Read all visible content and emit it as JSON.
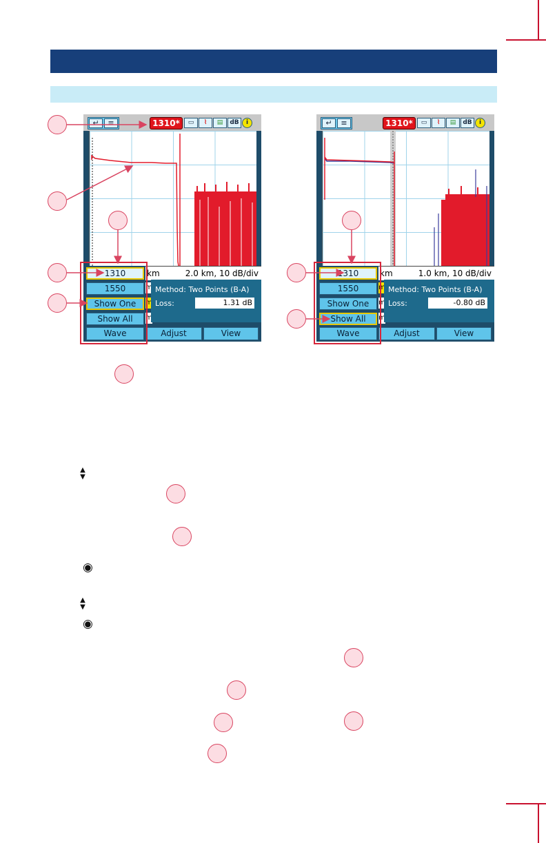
{
  "colors": {
    "header_dark": "#173f7a",
    "header_light": "#c9ecf7",
    "trace_red": "#e21b2b",
    "trace_blue": "#3b3d9c",
    "callout": "#d94460"
  },
  "left_device": {
    "wavelength": "1310*",
    "scale": "2.0 km, 10 dB/div",
    "km_label": "km",
    "method": "Method: Two Points (B-A)",
    "loss_label": "Loss:",
    "loss_value": "1.31 dB",
    "m_tabs": [
      "m",
      "m",
      "m"
    ],
    "wave_buttons": [
      "1310",
      "1550",
      "Show One",
      "Show All"
    ],
    "bottom_buttons": [
      "Wave",
      "Adjust",
      "View"
    ],
    "toolbar": {
      "back_icon": "↵",
      "menu_icon": "≡",
      "db_label": "dB",
      "info_icon": "i"
    }
  },
  "right_device": {
    "wavelength": "1310*",
    "scale": "1.0 km, 10 dB/div",
    "km_label": "km",
    "method": "Method: Two Points (B-A)",
    "loss_label": "Loss:",
    "loss_value": "-0.80 dB",
    "m_tabs": [
      "m",
      "m",
      "m"
    ],
    "wave_buttons": [
      "1310",
      "1550",
      "Show One",
      "Show All"
    ],
    "bottom_buttons": [
      "Wave",
      "Adjust",
      "View"
    ],
    "toolbar": {
      "back_icon": "↵",
      "menu_icon": "≡",
      "db_label": "dB",
      "info_icon": "i"
    }
  },
  "glyphs": {
    "up_down": "▲▼",
    "radio": "◉"
  }
}
